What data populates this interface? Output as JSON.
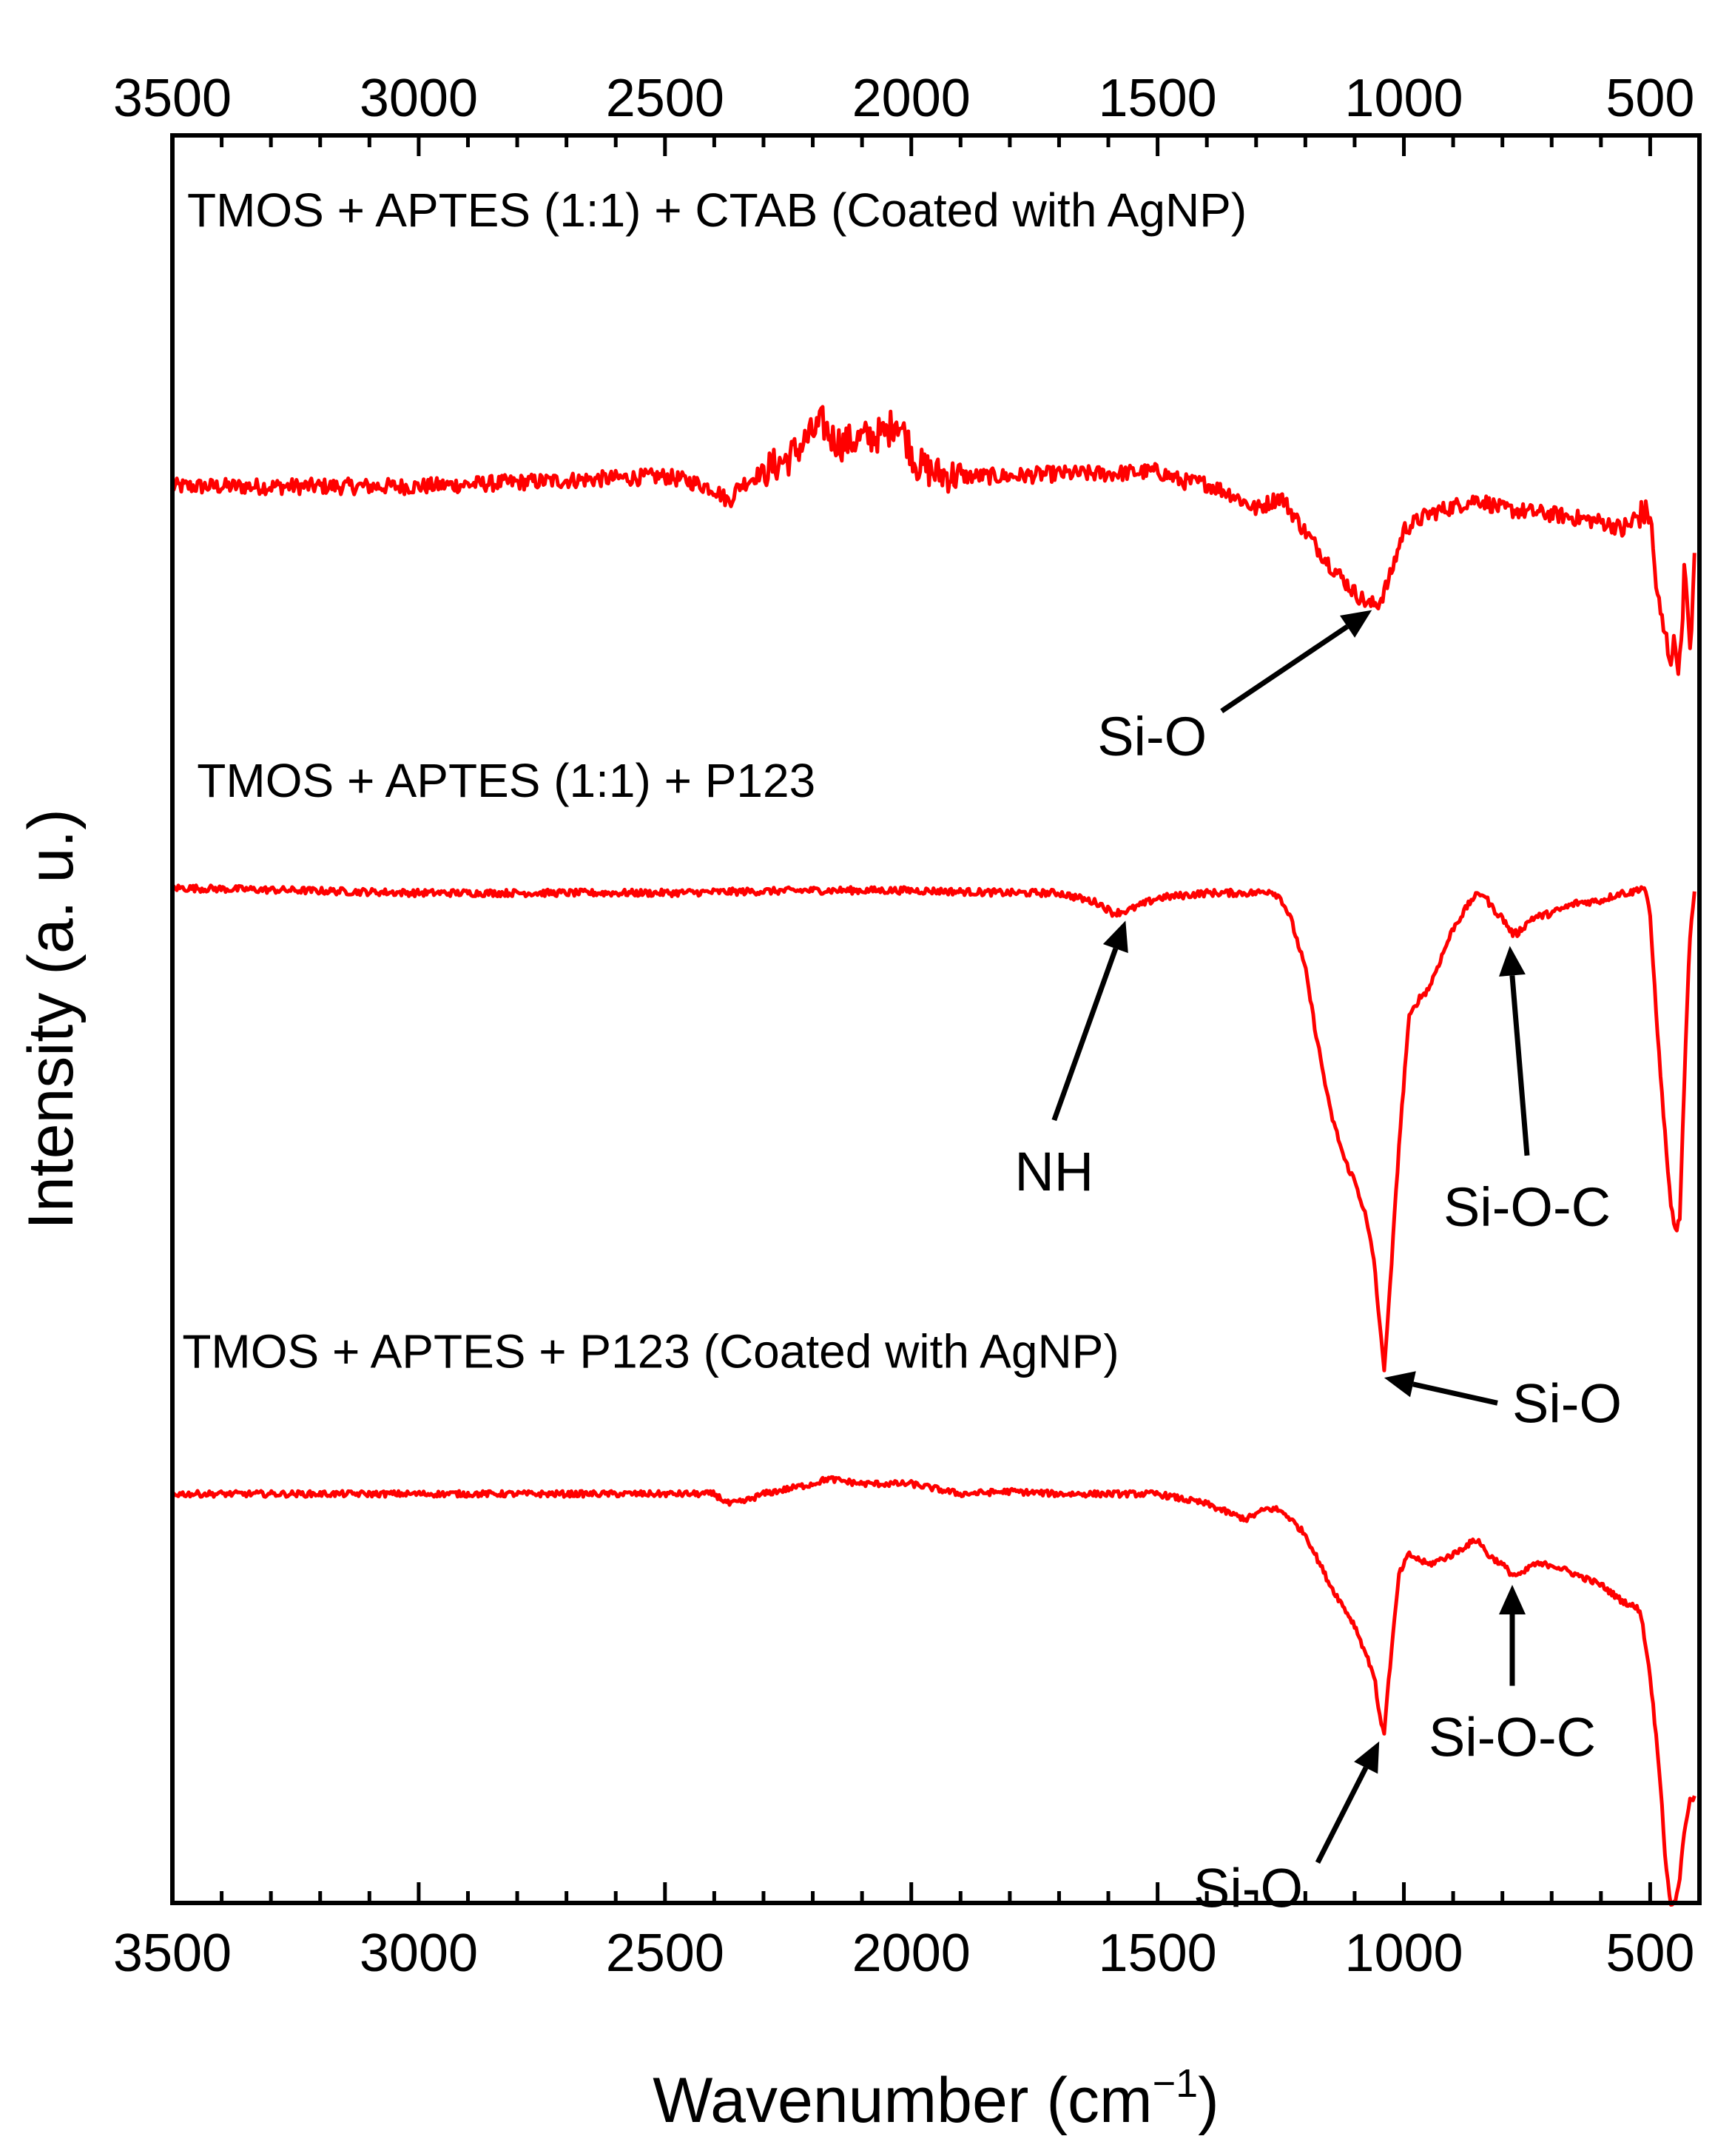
{
  "chart_data": {
    "type": "line",
    "title": "",
    "xlabel": "Wavenumber (cm",
    "xlabel_superscript": "−1",
    "xlabel_suffix": ")",
    "ylabel": "Intensity (a. u.)",
    "xlim": [
      3500,
      400
    ],
    "x_reversed": true,
    "ylim": [
      -3.05,
      0.45
    ],
    "yticks_shown": false,
    "grid": false,
    "legend": "none",
    "series_color": "#ff0000",
    "arrow_color": "#000000",
    "x_ticks_major": [
      3500,
      3000,
      2500,
      2000,
      1500,
      1000,
      500
    ],
    "x_tick_labels": [
      "3500",
      "3000",
      "2500",
      "2000",
      "1500",
      "1000",
      "500"
    ],
    "series": [
      {
        "name": "TMOS + APTES (1:1) + CTAB (Coated with AgNP)",
        "offset": 0,
        "noise": 0.016,
        "x": [
          3500,
          3000,
          2500,
          2450,
          2400,
          2370,
          2350,
          2300,
          2250,
          2200,
          2180,
          2160,
          2140,
          2100,
          2050,
          2030,
          2010,
          1990,
          1970,
          1950,
          1900,
          1800,
          1700,
          1600,
          1500,
          1450,
          1400,
          1350,
          1300,
          1250,
          1200,
          1150,
          1100,
          1070,
          1050,
          1030,
          1000,
          950,
          900,
          850,
          800,
          700,
          600,
          550,
          520,
          500,
          490,
          480,
          460,
          450,
          440,
          430,
          420,
          410
        ],
        "values": [
          -0.245,
          -0.245,
          -0.225,
          -0.235,
          -0.25,
          -0.275,
          -0.245,
          -0.215,
          -0.19,
          -0.14,
          -0.12,
          -0.15,
          -0.16,
          -0.15,
          -0.14,
          -0.11,
          -0.15,
          -0.2,
          -0.21,
          -0.22,
          -0.225,
          -0.225,
          -0.22,
          -0.22,
          -0.215,
          -0.235,
          -0.24,
          -0.26,
          -0.29,
          -0.265,
          -0.335,
          -0.4,
          -0.455,
          -0.48,
          -0.475,
          -0.43,
          -0.33,
          -0.3,
          -0.285,
          -0.27,
          -0.29,
          -0.3,
          -0.315,
          -0.33,
          -0.3,
          -0.3,
          -0.42,
          -0.5,
          -0.58,
          -0.56,
          -0.6,
          -0.4,
          -0.58,
          -0.4
        ]
      },
      {
        "name": "TMOS + APTES (1:1) + P123",
        "offset": 0,
        "noise": 0.007,
        "x": [
          3500,
          3000,
          2500,
          2200,
          2000,
          1800,
          1700,
          1620,
          1590,
          1560,
          1500,
          1400,
          1300,
          1270,
          1250,
          1230,
          1200,
          1180,
          1150,
          1120,
          1100,
          1080,
          1060,
          1050,
          1040,
          1030,
          1010,
          990,
          970,
          950,
          900,
          860,
          840,
          820,
          800,
          780,
          770,
          760,
          740,
          700,
          650,
          600,
          560,
          540,
          520,
          510,
          500,
          480,
          460,
          450,
          440,
          430,
          420,
          410
        ],
        "values": [
          -1.04,
          -1.05,
          -1.05,
          -1.045,
          -1.045,
          -1.05,
          -1.05,
          -1.07,
          -1.09,
          -1.085,
          -1.06,
          -1.05,
          -1.05,
          -1.045,
          -1.06,
          -1.1,
          -1.2,
          -1.32,
          -1.48,
          -1.58,
          -1.62,
          -1.68,
          -1.78,
          -1.9,
          -1.99,
          -1.86,
          -1.55,
          -1.3,
          -1.26,
          -1.24,
          -1.12,
          -1.06,
          -1.05,
          -1.08,
          -1.1,
          -1.13,
          -1.13,
          -1.12,
          -1.1,
          -1.09,
          -1.07,
          -1.065,
          -1.05,
          -1.05,
          -1.04,
          -1.04,
          -1.1,
          -1.4,
          -1.65,
          -1.72,
          -1.7,
          -1.4,
          -1.15,
          -1.05
        ]
      },
      {
        "name": "TMOS + APTES + P123 (Coated with AgNP)",
        "offset": 0,
        "noise": 0.006,
        "x": [
          3500,
          3000,
          2500,
          2400,
          2370,
          2340,
          2300,
          2200,
          2170,
          2100,
          2050,
          2000,
          1950,
          1900,
          1800,
          1700,
          1600,
          1500,
          1450,
          1400,
          1350,
          1320,
          1300,
          1280,
          1260,
          1240,
          1200,
          1150,
          1100,
          1080,
          1060,
          1050,
          1040,
          1030,
          1010,
          990,
          970,
          950,
          900,
          870,
          850,
          830,
          800,
          780,
          760,
          740,
          700,
          650,
          600,
          560,
          540,
          520,
          500,
          480,
          470,
          460,
          450,
          440,
          430,
          420,
          410
        ],
        "values": [
          -2.24,
          -2.24,
          -2.24,
          -2.24,
          -2.26,
          -2.255,
          -2.24,
          -2.22,
          -2.21,
          -2.22,
          -2.22,
          -2.22,
          -2.23,
          -2.24,
          -2.235,
          -2.24,
          -2.24,
          -2.24,
          -2.25,
          -2.26,
          -2.28,
          -2.29,
          -2.28,
          -2.27,
          -2.27,
          -2.28,
          -2.32,
          -2.42,
          -2.5,
          -2.55,
          -2.6,
          -2.68,
          -2.71,
          -2.6,
          -2.4,
          -2.36,
          -2.37,
          -2.38,
          -2.36,
          -2.34,
          -2.33,
          -2.36,
          -2.38,
          -2.4,
          -2.4,
          -2.38,
          -2.38,
          -2.4,
          -2.42,
          -2.45,
          -2.46,
          -2.47,
          -2.6,
          -2.8,
          -2.95,
          -3.05,
          -3.05,
          -3.0,
          -2.9,
          -2.85,
          -2.84
        ]
      }
    ],
    "series_labels": [
      "TMOS + APTES (1:1) + CTAB (Coated with AgNP)",
      "TMOS + APTES (1:1) + P123",
      "TMOS + APTES + P123 (Coated with AgNP)"
    ],
    "annotations": [
      {
        "text": "Si-O",
        "series": 0,
        "x": 1065,
        "y": -0.49,
        "label_x": 1370,
        "label_y": -0.69
      },
      {
        "text": "NH",
        "series": 1,
        "x": 1565,
        "y": -1.105,
        "label_x": 1710,
        "label_y": -1.5
      },
      {
        "text": "Si-O-C",
        "series": 1,
        "x": 785,
        "y": -1.155,
        "label_x": 750,
        "label_y": -1.57
      },
      {
        "text": "Si-O",
        "series": 1,
        "x": 1040,
        "y": -2.01,
        "label_x": 810,
        "label_y": -2.06
      },
      {
        "text": "Si-O-C",
        "series": 2,
        "x": 780,
        "y": -2.42,
        "label_x": 780,
        "label_y": -2.62
      },
      {
        "text": "Si-O",
        "series": 2,
        "x": 1050,
        "y": -2.73,
        "label_x": 1175,
        "label_y": -2.97
      }
    ]
  }
}
